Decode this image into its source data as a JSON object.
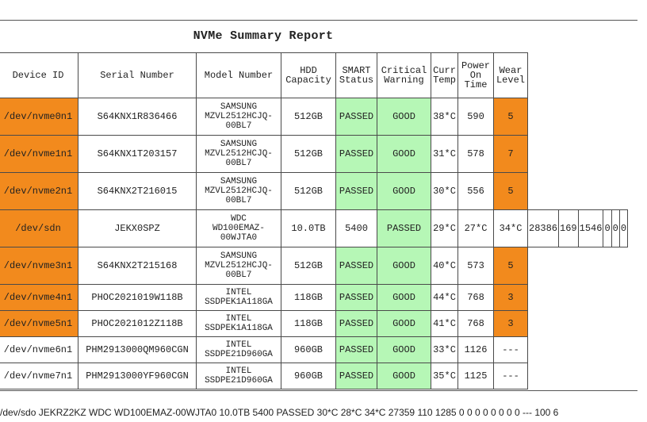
{
  "report": {
    "title": "NVMe Summary Report",
    "headers": {
      "device_id": "Device ID",
      "serial": "Serial Number",
      "model": "Model Number",
      "capacity_1": "HDD",
      "capacity_2": "Capacity",
      "smart_1": "SMART",
      "smart_2": "Status",
      "crit_1": "Critical",
      "crit_2": "Warning",
      "temp_1": "Curr",
      "temp_2": "Temp",
      "poh_1": "Power",
      "poh_2": "On",
      "poh_3": "Time",
      "wear_1": "Wear",
      "wear_2": "Level"
    },
    "rows": [
      {
        "device": "/dev/nvme0n1",
        "serial": "S64KNX1R836466",
        "model_1": "SAMSUNG",
        "model_2": "MZVL2512HCJQ-",
        "model_3": "00BL7",
        "capacity": "512GB",
        "smart": "PASSED",
        "warning": "GOOD",
        "temp": "38*C",
        "poh": "590",
        "wear": "5"
      },
      {
        "device": "/dev/nvme1n1",
        "serial": "S64KNX1T203157",
        "model_1": "SAMSUNG",
        "model_2": "MZVL2512HCJQ-",
        "model_3": "00BL7",
        "capacity": "512GB",
        "smart": "PASSED",
        "warning": "GOOD",
        "temp": "31*C",
        "poh": "578",
        "wear": "7"
      },
      {
        "device": "/dev/nvme2n1",
        "serial": "S64KNX2T216015",
        "model_1": "SAMSUNG",
        "model_2": "MZVL2512HCJQ-",
        "model_3": "00BL7",
        "capacity": "512GB",
        "smart": "PASSED",
        "warning": "GOOD",
        "temp": "30*C",
        "poh": "556",
        "wear": "5"
      }
    ],
    "sdn_row": {
      "device": "/dev/sdn",
      "serial": "JEKX0SPZ",
      "model_1": "WDC",
      "model_2": "WD100EMAZ-",
      "model_3": "00WJTA0",
      "capacity": "10.0TB",
      "rpm": "5400",
      "smart": "PASSED",
      "t1": "29*C",
      "t2": "27*C",
      "t3": "34*C",
      "v1": "28386",
      "v2": "169",
      "v3": "1546",
      "v4": "0",
      "v5": "0",
      "v6": "0"
    },
    "rows2": [
      {
        "device": "/dev/nvme3n1",
        "serial": "S64KNX2T215168",
        "model_1": "SAMSUNG",
        "model_2": "MZVL2512HCJQ-",
        "model_3": "00BL7",
        "capacity": "512GB",
        "smart": "PASSED",
        "warning": "GOOD",
        "temp": "40*C",
        "poh": "573",
        "wear": "5"
      }
    ],
    "rows3": [
      {
        "device": "/dev/nvme4n1",
        "serial": "PHOC2021019W118B",
        "model_1": "INTEL",
        "model_2": "SSDPEK1A118GA",
        "capacity": "118GB",
        "smart": "PASSED",
        "warning": "GOOD",
        "temp": "44*C",
        "poh": "768",
        "wear": "3"
      },
      {
        "device": "/dev/nvme5n1",
        "serial": "PHOC2021012Z118B",
        "model_1": "INTEL",
        "model_2": "SSDPEK1A118GA",
        "capacity": "118GB",
        "smart": "PASSED",
        "warning": "GOOD",
        "temp": "41*C",
        "poh": "768",
        "wear": "3"
      },
      {
        "device": "/dev/nvme6n1",
        "serial": "PHM2913000QM960CGN",
        "model_1": "INTEL",
        "model_2": "SSDPE21D960GA",
        "capacity": "960GB",
        "smart": "PASSED",
        "warning": "GOOD",
        "temp": "33*C",
        "poh": "1126",
        "wear": "---"
      },
      {
        "device": "/dev/nvme7n1",
        "serial": "PHM2913000YF960CGN",
        "model_1": "INTEL",
        "model_2": "SSDPE21D960GA",
        "capacity": "960GB",
        "smart": "PASSED",
        "warning": "GOOD",
        "temp": "35*C",
        "poh": "1125",
        "wear": "---"
      }
    ]
  },
  "footer_text": "/dev/sdo JEKRZ2KZ WDC WD100EMAZ-00WJTA0 10.0TB 5400 PASSED 30*C 28*C 34*C 27359 110 1285 0 0 0 0 0 0 0 0 --- 100 6",
  "colors": {
    "warning_orange": "#f28a1d",
    "good_green": "#b6f7b6"
  }
}
